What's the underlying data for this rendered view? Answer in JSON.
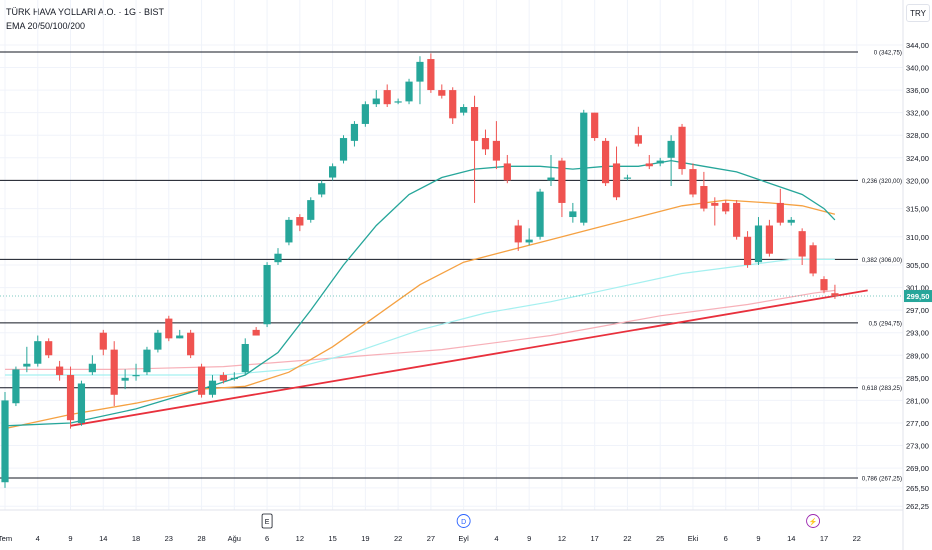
{
  "header": {
    "title": "TÜRK HAVA YOLLARI A.O. · 1G · BIST",
    "subtitle": "EMA 20/50/100/200",
    "currency": "TRY"
  },
  "colors": {
    "up": "#26a69a",
    "down": "#ef5350",
    "ema20": "#26a69a",
    "ema50": "#f5a142",
    "ema100": "#a5f0f0",
    "ema200": "#f7b0b8",
    "trendline": "#e8303c",
    "fib": "#131722"
  },
  "chart_data": {
    "type": "candlestick",
    "y_axis": {
      "ticks": [
        "344,00",
        "340,00",
        "336,00",
        "332,00",
        "328,00",
        "324,00",
        "320,00",
        "315,00",
        "310,00",
        "305,00",
        "301,00",
        "297,00",
        "293,00",
        "289,00",
        "285,00",
        "281,00",
        "277,00",
        "273,00",
        "269,00",
        "265,50",
        "262,25"
      ],
      "range": [
        261,
        345
      ]
    },
    "x_axis": {
      "labels": [
        "Tem",
        "4",
        "9",
        "14",
        "18",
        "23",
        "28",
        "Ağu",
        "6",
        "12",
        "15",
        "19",
        "22",
        "27",
        "Eyl",
        "4",
        "9",
        "12",
        "17",
        "22",
        "25",
        "Eki",
        "6",
        "9",
        "14",
        "17",
        "22"
      ],
      "label_index": [
        0,
        3,
        6,
        9,
        12,
        15,
        18,
        21,
        24,
        27,
        30,
        33,
        36,
        39,
        42,
        45,
        48,
        51,
        54,
        57,
        60,
        63,
        66,
        69,
        72,
        75,
        78
      ]
    },
    "candles": [
      {
        "o": 266.5,
        "h": 282.5,
        "l": 265.5,
        "c": 281.0
      },
      {
        "o": 280.5,
        "h": 287.0,
        "l": 280.0,
        "c": 286.5
      },
      {
        "o": 287.0,
        "h": 290.5,
        "l": 286.0,
        "c": 287.5
      },
      {
        "o": 287.5,
        "h": 292.5,
        "l": 287.0,
        "c": 291.5
      },
      {
        "o": 291.5,
        "h": 292.0,
        "l": 288.5,
        "c": 289.0
      },
      {
        "o": 287.0,
        "h": 288.0,
        "l": 284.5,
        "c": 285.5
      },
      {
        "o": 285.5,
        "h": 287.0,
        "l": 276.0,
        "c": 277.5
      },
      {
        "o": 277.0,
        "h": 284.5,
        "l": 276.5,
        "c": 284.0
      },
      {
        "o": 286.0,
        "h": 289.0,
        "l": 285.5,
        "c": 287.5
      },
      {
        "o": 293.0,
        "h": 293.5,
        "l": 289.0,
        "c": 290.0
      },
      {
        "o": 290.0,
        "h": 291.5,
        "l": 280.0,
        "c": 282.0
      },
      {
        "o": 284.5,
        "h": 286.5,
        "l": 283.0,
        "c": 285.0
      },
      {
        "o": 285.5,
        "h": 287.5,
        "l": 284.5,
        "c": 285.5
      },
      {
        "o": 286.0,
        "h": 290.5,
        "l": 285.5,
        "c": 290.0
      },
      {
        "o": 290.0,
        "h": 293.5,
        "l": 289.5,
        "c": 293.0
      },
      {
        "o": 295.5,
        "h": 296.0,
        "l": 291.5,
        "c": 292.0
      },
      {
        "o": 292.0,
        "h": 293.5,
        "l": 292.0,
        "c": 292.5
      },
      {
        "o": 293.0,
        "h": 293.5,
        "l": 288.5,
        "c": 289.0
      },
      {
        "o": 287.0,
        "h": 287.5,
        "l": 281.5,
        "c": 282.0
      },
      {
        "o": 282.0,
        "h": 285.5,
        "l": 281.5,
        "c": 284.5
      },
      {
        "o": 285.5,
        "h": 286.0,
        "l": 284.0,
        "c": 284.5
      },
      {
        "o": 285.0,
        "h": 286.0,
        "l": 284.5,
        "c": 285.0
      },
      {
        "o": 286.0,
        "h": 292.0,
        "l": 285.5,
        "c": 291.0
      },
      {
        "o": 293.5,
        "h": 294.0,
        "l": 292.5,
        "c": 292.5
      },
      {
        "o": 294.5,
        "h": 305.5,
        "l": 294.0,
        "c": 305.0
      },
      {
        "o": 305.5,
        "h": 308.0,
        "l": 305.0,
        "c": 307.0
      },
      {
        "o": 309.0,
        "h": 313.5,
        "l": 308.5,
        "c": 313.0
      },
      {
        "o": 313.5,
        "h": 314.0,
        "l": 311.0,
        "c": 312.0
      },
      {
        "o": 313.0,
        "h": 317.0,
        "l": 312.5,
        "c": 316.5
      },
      {
        "o": 317.5,
        "h": 320.0,
        "l": 317.0,
        "c": 319.5
      },
      {
        "o": 320.5,
        "h": 323.0,
        "l": 320.0,
        "c": 322.5
      },
      {
        "o": 323.5,
        "h": 328.0,
        "l": 323.0,
        "c": 327.5
      },
      {
        "o": 327.0,
        "h": 330.5,
        "l": 326.0,
        "c": 330.0
      },
      {
        "o": 330.0,
        "h": 334.0,
        "l": 329.5,
        "c": 333.5
      },
      {
        "o": 333.5,
        "h": 336.0,
        "l": 333.0,
        "c": 334.5
      },
      {
        "o": 336.0,
        "h": 337.0,
        "l": 333.0,
        "c": 333.5
      },
      {
        "o": 334.0,
        "h": 334.5,
        "l": 333.5,
        "c": 334.0
      },
      {
        "o": 334.0,
        "h": 338.0,
        "l": 333.5,
        "c": 337.5
      },
      {
        "o": 337.5,
        "h": 342.0,
        "l": 333.5,
        "c": 341.0
      },
      {
        "o": 341.5,
        "h": 342.5,
        "l": 335.5,
        "c": 336.0
      },
      {
        "o": 336.0,
        "h": 337.0,
        "l": 334.5,
        "c": 335.0
      },
      {
        "o": 336.0,
        "h": 336.5,
        "l": 330.0,
        "c": 331.0
      },
      {
        "o": 332.0,
        "h": 333.5,
        "l": 331.5,
        "c": 333.0
      },
      {
        "o": 333.0,
        "h": 335.0,
        "l": 316.0,
        "c": 327.0
      },
      {
        "o": 327.5,
        "h": 329.0,
        "l": 324.5,
        "c": 325.5
      },
      {
        "o": 327.0,
        "h": 330.5,
        "l": 322.0,
        "c": 323.5
      },
      {
        "o": 323.0,
        "h": 324.5,
        "l": 319.5,
        "c": 320.0
      },
      {
        "o": 312.0,
        "h": 313.0,
        "l": 307.5,
        "c": 309.0
      },
      {
        "o": 309.0,
        "h": 311.5,
        "l": 308.5,
        "c": 309.5
      },
      {
        "o": 310.0,
        "h": 318.5,
        "l": 309.5,
        "c": 318.0
      },
      {
        "o": 320.0,
        "h": 324.5,
        "l": 319.0,
        "c": 320.5
      },
      {
        "o": 323.5,
        "h": 324.0,
        "l": 313.5,
        "c": 316.0
      },
      {
        "o": 313.5,
        "h": 316.0,
        "l": 312.5,
        "c": 314.5
      },
      {
        "o": 312.5,
        "h": 332.5,
        "l": 312.0,
        "c": 332.0
      },
      {
        "o": 332.0,
        "h": 332.0,
        "l": 327.0,
        "c": 327.5
      },
      {
        "o": 327.0,
        "h": 327.5,
        "l": 319.0,
        "c": 319.5
      },
      {
        "o": 323.0,
        "h": 326.0,
        "l": 316.5,
        "c": 317.0
      },
      {
        "o": 320.5,
        "h": 321.0,
        "l": 320.0,
        "c": 320.5
      },
      {
        "o": 328.0,
        "h": 329.5,
        "l": 326.0,
        "c": 326.5
      },
      {
        "o": 323.0,
        "h": 324.5,
        "l": 322.0,
        "c": 322.5
      },
      {
        "o": 323.0,
        "h": 324.0,
        "l": 322.5,
        "c": 323.5
      },
      {
        "o": 324.0,
        "h": 328.0,
        "l": 319.0,
        "c": 327.0
      },
      {
        "o": 329.5,
        "h": 330.0,
        "l": 321.0,
        "c": 322.0
      },
      {
        "o": 322.0,
        "h": 323.0,
        "l": 317.0,
        "c": 317.5
      },
      {
        "o": 319.0,
        "h": 321.5,
        "l": 314.5,
        "c": 315.0
      },
      {
        "o": 316.0,
        "h": 317.0,
        "l": 312.0,
        "c": 315.5
      },
      {
        "o": 316.0,
        "h": 316.5,
        "l": 314.0,
        "c": 314.5
      },
      {
        "o": 316.0,
        "h": 316.5,
        "l": 309.5,
        "c": 310.0
      },
      {
        "o": 310.0,
        "h": 311.0,
        "l": 304.5,
        "c": 305.0
      },
      {
        "o": 305.5,
        "h": 313.5,
        "l": 305.0,
        "c": 312.0
      },
      {
        "o": 312.0,
        "h": 313.0,
        "l": 306.5,
        "c": 307.0
      },
      {
        "o": 316.0,
        "h": 318.5,
        "l": 312.0,
        "c": 312.5
      },
      {
        "o": 312.5,
        "h": 313.5,
        "l": 312.0,
        "c": 313.0
      },
      {
        "o": 311.0,
        "h": 311.5,
        "l": 305.0,
        "c": 306.5
      },
      {
        "o": 308.5,
        "h": 309.0,
        "l": 303.0,
        "c": 303.5
      },
      {
        "o": 302.5,
        "h": 303.0,
        "l": 300.0,
        "c": 300.5
      },
      {
        "o": 300.0,
        "h": 301.5,
        "l": 299.0,
        "c": 299.5
      }
    ],
    "ema20": [
      [
        0,
        276.5
      ],
      [
        6,
        277.0
      ],
      [
        12,
        279.5
      ],
      [
        18,
        283.0
      ],
      [
        22,
        285.5
      ],
      [
        25,
        289.5
      ],
      [
        28,
        297.0
      ],
      [
        31,
        305.0
      ],
      [
        34,
        312.0
      ],
      [
        37,
        317.5
      ],
      [
        40,
        320.5
      ],
      [
        43,
        322.0
      ],
      [
        46,
        322.5
      ],
      [
        49,
        322.5
      ],
      [
        52,
        322.0
      ],
      [
        55,
        322.5
      ],
      [
        58,
        322.5
      ],
      [
        61,
        323.5
      ],
      [
        64,
        322.5
      ],
      [
        67,
        321.5
      ],
      [
        70,
        319.5
      ],
      [
        73,
        317.5
      ],
      [
        75,
        315.0
      ],
      [
        76,
        313.0
      ]
    ],
    "ema50": [
      [
        0,
        276.0
      ],
      [
        6,
        278.5
      ],
      [
        12,
        280.5
      ],
      [
        18,
        283.0
      ],
      [
        22,
        283.5
      ],
      [
        26,
        286.0
      ],
      [
        30,
        290.5
      ],
      [
        34,
        296.0
      ],
      [
        38,
        301.5
      ],
      [
        42,
        305.5
      ],
      [
        46,
        307.5
      ],
      [
        50,
        309.5
      ],
      [
        54,
        311.5
      ],
      [
        58,
        313.5
      ],
      [
        62,
        315.5
      ],
      [
        66,
        316.5
      ],
      [
        70,
        316.0
      ],
      [
        73,
        315.5
      ],
      [
        76,
        314.0
      ]
    ],
    "ema100": [
      [
        0,
        285.5
      ],
      [
        8,
        285.5
      ],
      [
        14,
        285.5
      ],
      [
        20,
        285.5
      ],
      [
        26,
        286.5
      ],
      [
        32,
        289.5
      ],
      [
        38,
        293.5
      ],
      [
        44,
        296.5
      ],
      [
        50,
        298.5
      ],
      [
        56,
        301.0
      ],
      [
        62,
        303.5
      ],
      [
        68,
        305.0
      ],
      [
        72,
        306.0
      ],
      [
        76,
        306.0
      ]
    ],
    "ema200": [
      [
        0,
        286.5
      ],
      [
        10,
        286.5
      ],
      [
        20,
        287.0
      ],
      [
        30,
        288.5
      ],
      [
        40,
        290.0
      ],
      [
        50,
        292.5
      ],
      [
        60,
        296.0
      ],
      [
        68,
        298.0
      ],
      [
        74,
        300.0
      ],
      [
        76,
        300.5
      ]
    ],
    "trendline": {
      "from": [
        6,
        276.5
      ],
      "to": [
        79,
        300.5
      ]
    },
    "fib_levels": [
      {
        "label": "0 (342,75)",
        "value": 342.75
      },
      {
        "label": "0,236 (320,00)",
        "value": 320.0
      },
      {
        "label": "0,382 (306,00)",
        "value": 306.0
      },
      {
        "label": "0,5 (294,75)",
        "value": 294.75
      },
      {
        "label": "0,618 (283,25)",
        "value": 283.25
      },
      {
        "label": "0,786 (267,25)",
        "value": 267.25
      }
    ],
    "current_price": {
      "label": "299,50",
      "value": 299.5
    },
    "events": [
      {
        "label": "E",
        "index": 24,
        "kind": "earnings"
      },
      {
        "label": "D",
        "index": 42,
        "kind": "dividend"
      },
      {
        "label": "⚡",
        "index": 74,
        "kind": "split"
      }
    ]
  }
}
